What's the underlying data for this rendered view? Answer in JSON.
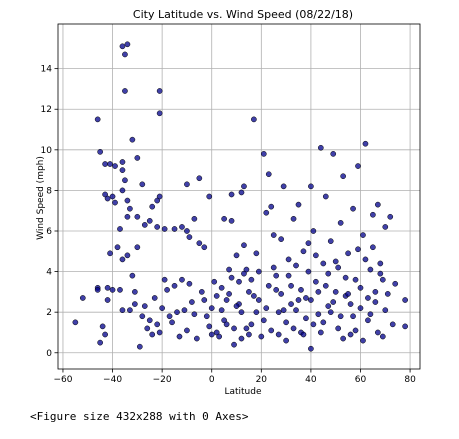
{
  "chart_data": {
    "type": "scatter",
    "title": "City Latitude vs. Wind Speed (08/22/18)",
    "xlabel": "Latitude",
    "ylabel": "Wind Speed (mph)",
    "xlim": [
      -62,
      84
    ],
    "ylim": [
      -0.8,
      16.2
    ],
    "xticks": [
      -60,
      -40,
      -20,
      0,
      20,
      40,
      60,
      80
    ],
    "yticks": [
      0,
      2,
      4,
      6,
      8,
      10,
      12,
      14
    ],
    "grid": true,
    "marker_color": "#00008b",
    "points": [
      {
        "x": -55,
        "y": 1.5
      },
      {
        "x": -52,
        "y": 2.7
      },
      {
        "x": -46,
        "y": 3.2
      },
      {
        "x": -46,
        "y": 3.1
      },
      {
        "x": -45,
        "y": 0.5
      },
      {
        "x": -44,
        "y": 1.3
      },
      {
        "x": -43,
        "y": 0.9
      },
      {
        "x": -42,
        "y": 2.6
      },
      {
        "x": -42,
        "y": 3.2
      },
      {
        "x": -46,
        "y": 11.5
      },
      {
        "x": -45,
        "y": 9.9
      },
      {
        "x": -43,
        "y": 9.3
      },
      {
        "x": -41,
        "y": 9.3
      },
      {
        "x": -39,
        "y": 9.2
      },
      {
        "x": -36,
        "y": 15.1
      },
      {
        "x": -35,
        "y": 14.7
      },
      {
        "x": -34,
        "y": 15.2
      },
      {
        "x": -35,
        "y": 12.9
      },
      {
        "x": -21,
        "y": 12.9
      },
      {
        "x": -21,
        "y": 11.8
      },
      {
        "x": -32,
        "y": 10.5
      },
      {
        "x": -30,
        "y": 9.6
      },
      {
        "x": -36,
        "y": 9.4
      },
      {
        "x": -36,
        "y": 9.0
      },
      {
        "x": -43,
        "y": 7.8
      },
      {
        "x": -42,
        "y": 7.6
      },
      {
        "x": -40,
        "y": 7.7
      },
      {
        "x": -39,
        "y": 7.4
      },
      {
        "x": -35,
        "y": 8.5
      },
      {
        "x": -36,
        "y": 8.0
      },
      {
        "x": -34,
        "y": 7.5
      },
      {
        "x": -33,
        "y": 7.1
      },
      {
        "x": -28,
        "y": 8.3
      },
      {
        "x": -24,
        "y": 7.2
      },
      {
        "x": -22,
        "y": 7.5
      },
      {
        "x": -21,
        "y": 7.7
      },
      {
        "x": -10,
        "y": 8.3
      },
      {
        "x": -5,
        "y": 8.6
      },
      {
        "x": -1,
        "y": 7.7
      },
      {
        "x": 8,
        "y": 7.8
      },
      {
        "x": 13,
        "y": 8.2
      },
      {
        "x": 12,
        "y": 7.9
      },
      {
        "x": -37,
        "y": 6.1
      },
      {
        "x": -34,
        "y": 6.7
      },
      {
        "x": -30,
        "y": 6.7
      },
      {
        "x": -27,
        "y": 6.3
      },
      {
        "x": -25,
        "y": 6.5
      },
      {
        "x": -22,
        "y": 6.2
      },
      {
        "x": -19,
        "y": 6.1
      },
      {
        "x": -15,
        "y": 6.1
      },
      {
        "x": -12,
        "y": 6.2
      },
      {
        "x": -10,
        "y": 6.0
      },
      {
        "x": -7,
        "y": 6.6
      },
      {
        "x": -9,
        "y": 5.7
      },
      {
        "x": -5,
        "y": 5.4
      },
      {
        "x": -3,
        "y": 5.2
      },
      {
        "x": 5,
        "y": 6.6
      },
      {
        "x": 8,
        "y": 6.5
      },
      {
        "x": -36,
        "y": 4.6
      },
      {
        "x": -34,
        "y": 4.8
      },
      {
        "x": -32,
        "y": 3.8
      },
      {
        "x": -30,
        "y": 5.2
      },
      {
        "x": -41,
        "y": 4.9
      },
      {
        "x": -37,
        "y": 3.1
      },
      {
        "x": -33,
        "y": 2.1
      },
      {
        "x": -31,
        "y": 2.4
      },
      {
        "x": -28,
        "y": 1.8
      },
      {
        "x": -26,
        "y": 1.2
      },
      {
        "x": -24,
        "y": 0.9
      },
      {
        "x": -22,
        "y": 1.4
      },
      {
        "x": -20,
        "y": 2.2
      },
      {
        "x": -18,
        "y": 3.1
      },
      {
        "x": -16,
        "y": 1.5
      },
      {
        "x": -14,
        "y": 2.0
      },
      {
        "x": -12,
        "y": 3.6
      },
      {
        "x": -10,
        "y": 1.1
      },
      {
        "x": -8,
        "y": 2.5
      },
      {
        "x": -6,
        "y": 0.7
      },
      {
        "x": -4,
        "y": 3.0
      },
      {
        "x": -2,
        "y": 1.8
      },
      {
        "x": 0,
        "y": 2.2
      },
      {
        "x": 2,
        "y": 1.0
      },
      {
        "x": 4,
        "y": 3.2
      },
      {
        "x": 6,
        "y": 2.6
      },
      {
        "x": 7,
        "y": 4.1
      },
      {
        "x": 9,
        "y": 1.2
      },
      {
        "x": 10,
        "y": 4.8
      },
      {
        "x": 11,
        "y": 3.5
      },
      {
        "x": 12,
        "y": 2.0
      },
      {
        "x": 13,
        "y": 5.3
      },
      {
        "x": 14,
        "y": 4.1
      },
      {
        "x": 15,
        "y": 3.0
      },
      {
        "x": 16,
        "y": 1.4
      },
      {
        "x": 17,
        "y": 11.5
      },
      {
        "x": 18,
        "y": 4.9
      },
      {
        "x": 19,
        "y": 2.6
      },
      {
        "x": 20,
        "y": 0.8
      },
      {
        "x": 21,
        "y": 9.8
      },
      {
        "x": 22,
        "y": 6.9
      },
      {
        "x": 23,
        "y": 8.8
      },
      {
        "x": 24,
        "y": 7.2
      },
      {
        "x": 25,
        "y": 4.2
      },
      {
        "x": 26,
        "y": 3.1
      },
      {
        "x": 27,
        "y": 2.0
      },
      {
        "x": 28,
        "y": 5.6
      },
      {
        "x": 29,
        "y": 8.2
      },
      {
        "x": 30,
        "y": 1.5
      },
      {
        "x": 31,
        "y": 4.6
      },
      {
        "x": 32,
        "y": 3.3
      },
      {
        "x": 33,
        "y": 6.6
      },
      {
        "x": 34,
        "y": 2.1
      },
      {
        "x": 35,
        "y": 7.3
      },
      {
        "x": 36,
        "y": 1.0
      },
      {
        "x": 37,
        "y": 5.0
      },
      {
        "x": 38,
        "y": 2.7
      },
      {
        "x": 39,
        "y": 4.0
      },
      {
        "x": 40,
        "y": 0.2
      },
      {
        "x": 40,
        "y": 8.2
      },
      {
        "x": 41,
        "y": 6.0
      },
      {
        "x": 42,
        "y": 3.5
      },
      {
        "x": 43,
        "y": 1.9
      },
      {
        "x": 44,
        "y": 10.1
      },
      {
        "x": 45,
        "y": 4.4
      },
      {
        "x": 46,
        "y": 7.7
      },
      {
        "x": 47,
        "y": 2.3
      },
      {
        "x": 48,
        "y": 5.5
      },
      {
        "x": 49,
        "y": 9.8
      },
      {
        "x": 50,
        "y": 3.0
      },
      {
        "x": 51,
        "y": 1.2
      },
      {
        "x": 52,
        "y": 6.4
      },
      {
        "x": 53,
        "y": 8.7
      },
      {
        "x": 54,
        "y": 2.8
      },
      {
        "x": 55,
        "y": 4.9
      },
      {
        "x": 56,
        "y": 0.9
      },
      {
        "x": 57,
        "y": 7.1
      },
      {
        "x": 58,
        "y": 3.6
      },
      {
        "x": 59,
        "y": 9.2
      },
      {
        "x": 60,
        "y": 2.2
      },
      {
        "x": 61,
        "y": 5.8
      },
      {
        "x": 62,
        "y": 10.3
      },
      {
        "x": 63,
        "y": 1.6
      },
      {
        "x": 64,
        "y": 4.1
      },
      {
        "x": 65,
        "y": 6.8
      },
      {
        "x": 66,
        "y": 2.5
      },
      {
        "x": 67,
        "y": 7.3
      },
      {
        "x": 68,
        "y": 3.9
      },
      {
        "x": 69,
        "y": 0.8
      },
      {
        "x": 70,
        "y": 6.2
      },
      {
        "x": 71,
        "y": 2.9
      },
      {
        "x": 72,
        "y": 6.7
      },
      {
        "x": 73,
        "y": 1.4
      },
      {
        "x": 74,
        "y": 3.4
      },
      {
        "x": 78,
        "y": 1.3
      },
      {
        "x": 78,
        "y": 2.6
      },
      {
        "x": 22,
        "y": 2.2
      },
      {
        "x": 24,
        "y": 1.1
      },
      {
        "x": 26,
        "y": 3.8
      },
      {
        "x": 28,
        "y": 2.9
      },
      {
        "x": 30,
        "y": 0.6
      },
      {
        "x": 32,
        "y": 2.4
      },
      {
        "x": 34,
        "y": 4.3
      },
      {
        "x": 36,
        "y": 3.1
      },
      {
        "x": 38,
        "y": 1.7
      },
      {
        "x": 40,
        "y": 2.6
      },
      {
        "x": 42,
        "y": 4.8
      },
      {
        "x": 44,
        "y": 1.0
      },
      {
        "x": 46,
        "y": 3.3
      },
      {
        "x": 48,
        "y": 2.0
      },
      {
        "x": 50,
        "y": 4.5
      },
      {
        "x": 52,
        "y": 1.8
      },
      {
        "x": 54,
        "y": 3.7
      },
      {
        "x": 56,
        "y": 2.4
      },
      {
        "x": 58,
        "y": 1.1
      },
      {
        "x": 60,
        "y": 3.2
      },
      {
        "x": 62,
        "y": 4.6
      },
      {
        "x": 64,
        "y": 1.9
      },
      {
        "x": 66,
        "y": 3.0
      },
      {
        "x": 68,
        "y": 4.4
      },
      {
        "x": 70,
        "y": 2.1
      },
      {
        "x": 5,
        "y": 1.6
      },
      {
        "x": 7,
        "y": 2.9
      },
      {
        "x": 9,
        "y": 0.4
      },
      {
        "x": 11,
        "y": 2.4
      },
      {
        "x": 13,
        "y": 3.9
      },
      {
        "x": 15,
        "y": 0.9
      },
      {
        "x": 17,
        "y": 2.8
      },
      {
        "x": 19,
        "y": 4.0
      },
      {
        "x": 3,
        "y": 0.8
      },
      {
        "x": 1,
        "y": 3.5
      },
      {
        "x": -1,
        "y": 1.3
      },
      {
        "x": -3,
        "y": 2.6
      },
      {
        "x": -7,
        "y": 1.9
      },
      {
        "x": -9,
        "y": 3.4
      },
      {
        "x": -11,
        "y": 2.1
      },
      {
        "x": -13,
        "y": 0.8
      },
      {
        "x": -15,
        "y": 3.3
      },
      {
        "x": -17,
        "y": 1.8
      },
      {
        "x": -19,
        "y": 3.6
      },
      {
        "x": -21,
        "y": 1.0
      },
      {
        "x": -23,
        "y": 2.7
      },
      {
        "x": -25,
        "y": 1.6
      },
      {
        "x": -27,
        "y": 2.3
      },
      {
        "x": -29,
        "y": 0.3
      },
      {
        "x": -31,
        "y": 3.0
      },
      {
        "x": -36,
        "y": 2.1
      },
      {
        "x": -38,
        "y": 5.2
      },
      {
        "x": -40,
        "y": 3.1
      },
      {
        "x": 45,
        "y": 1.5
      },
      {
        "x": 47,
        "y": 3.9
      },
      {
        "x": 49,
        "y": 2.5
      },
      {
        "x": 51,
        "y": 4.2
      },
      {
        "x": 53,
        "y": 0.7
      },
      {
        "x": 55,
        "y": 2.9
      },
      {
        "x": 57,
        "y": 1.8
      },
      {
        "x": 59,
        "y": 5.1
      },
      {
        "x": 61,
        "y": 0.6
      },
      {
        "x": 63,
        "y": 2.7
      },
      {
        "x": 65,
        "y": 5.2
      },
      {
        "x": 67,
        "y": 1.0
      },
      {
        "x": 69,
        "y": 3.6
      },
      {
        "x": 39,
        "y": 5.4
      },
      {
        "x": 41,
        "y": 1.4
      },
      {
        "x": 43,
        "y": 3.0
      },
      {
        "x": 37,
        "y": 0.9
      },
      {
        "x": 35,
        "y": 2.6
      },
      {
        "x": 33,
        "y": 1.2
      },
      {
        "x": 31,
        "y": 3.8
      },
      {
        "x": 29,
        "y": 2.1
      },
      {
        "x": 27,
        "y": 0.9
      },
      {
        "x": 25,
        "y": 5.8
      },
      {
        "x": 23,
        "y": 3.3
      },
      {
        "x": 21,
        "y": 1.6
      },
      {
        "x": 18,
        "y": 2.0
      },
      {
        "x": 16,
        "y": 3.6
      },
      {
        "x": 14,
        "y": 1.2
      },
      {
        "x": 12,
        "y": 0.7
      },
      {
        "x": 10,
        "y": 2.3
      },
      {
        "x": 8,
        "y": 3.7
      },
      {
        "x": 6,
        "y": 1.4
      },
      {
        "x": 4,
        "y": 2.1
      },
      {
        "x": 2,
        "y": 2.8
      },
      {
        "x": 0,
        "y": 0.9
      }
    ]
  },
  "figure_caption": "<Figure size 432x288 with 0 Axes>"
}
